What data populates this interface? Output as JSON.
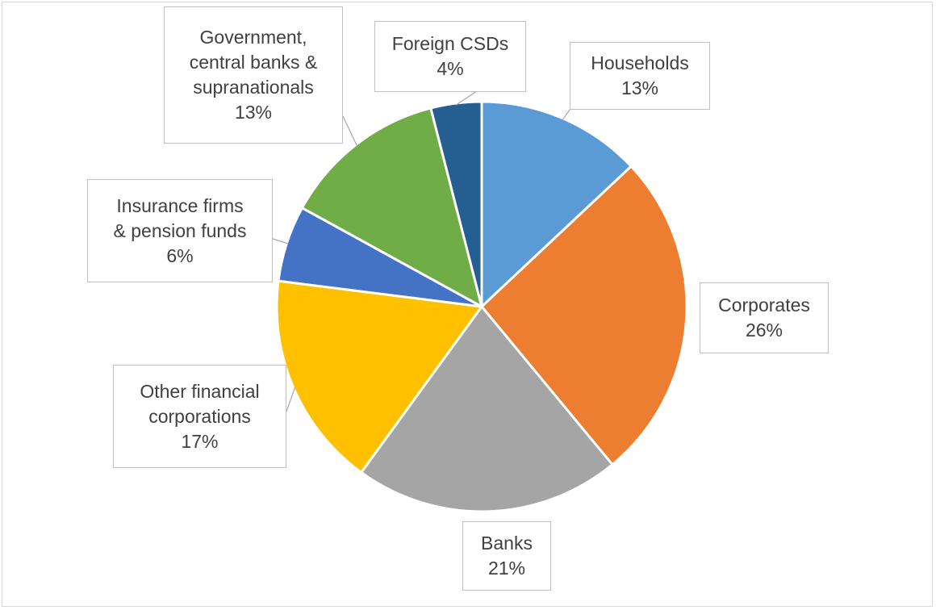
{
  "chart_data": {
    "type": "pie",
    "title": "",
    "start_angle_deg": 0,
    "direction": "clockwise",
    "slices": [
      {
        "label_lines": [
          "Households"
        ],
        "percent_label": "13%",
        "value": 13,
        "color": "#5b9bd5"
      },
      {
        "label_lines": [
          "Corporates"
        ],
        "percent_label": "26%",
        "value": 26,
        "color": "#ed7d31"
      },
      {
        "label_lines": [
          "Banks"
        ],
        "percent_label": "21%",
        "value": 21,
        "color": "#a5a5a5"
      },
      {
        "label_lines": [
          "Other financial",
          "corporations"
        ],
        "percent_label": "17%",
        "value": 17,
        "color": "#ffc000"
      },
      {
        "label_lines": [
          "Insurance firms",
          "& pension funds"
        ],
        "percent_label": "6%",
        "value": 6,
        "color": "#4472c4"
      },
      {
        "label_lines": [
          "Government,",
          "central banks &",
          "supranationals"
        ],
        "percent_label": "13%",
        "value": 13,
        "color": "#70ad47"
      },
      {
        "label_lines": [
          "Foreign CSDs"
        ],
        "percent_label": "4%",
        "value": 4,
        "color": "#255e91"
      }
    ]
  }
}
